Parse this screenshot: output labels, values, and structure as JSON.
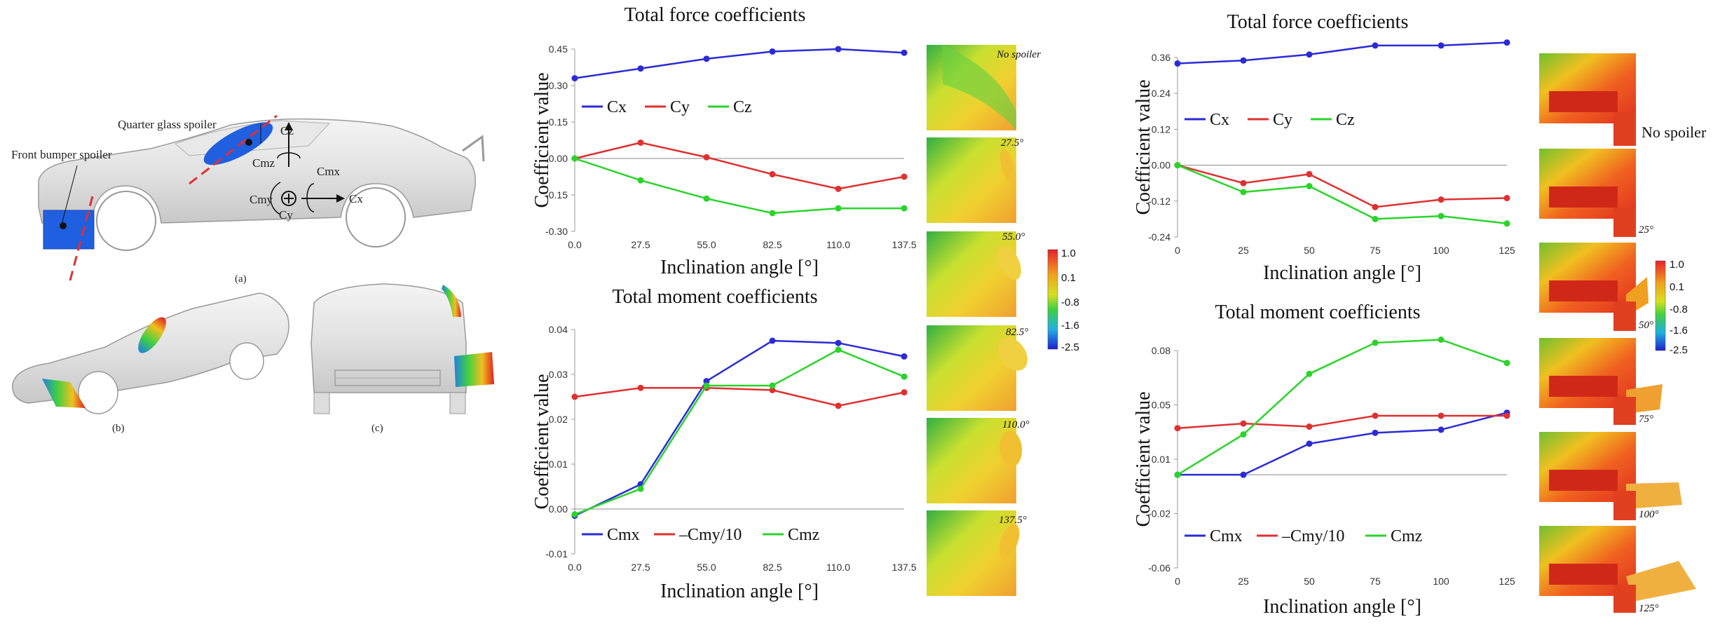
{
  "colors": {
    "cx": "#2b2bd6",
    "cy": "#e03030",
    "cz": "#2ad42a",
    "spoiler_blue": "#1f5fe0"
  },
  "car": {
    "front_bumper_label": "Front bumper spoiler",
    "quarter_glass_label": "Quarter glass spoiler",
    "axis_cz": "Cz",
    "axis_cmz": "Cmz",
    "axis_cmx": "Cmx",
    "axis_cmy": "Cmy",
    "axis_cy": "Cy",
    "axis_cx": "Cx",
    "panel_a": "(a)",
    "panel_b": "(b)",
    "panel_c": "(c)"
  },
  "colorbar": {
    "ticks": [
      "1.0",
      "0.1",
      "-0.8",
      "-1.6",
      "-2.5"
    ]
  },
  "thumbs_left": [
    "No spoiler",
    "27.5°",
    "55.0°",
    "82.5°",
    "110.0°",
    "137.5°"
  ],
  "thumbs_right": [
    "No spoiler",
    "25°",
    "50°",
    "75°",
    "100°",
    "125°"
  ],
  "chart_data": [
    {
      "id": "force-left",
      "type": "line",
      "title": "Total force coefficients",
      "xlabel": "Inclination angle [°]",
      "ylabel": "Coefficient value",
      "categories": [
        "0.0",
        "27.5",
        "55.0",
        "82.5",
        "110.0",
        "137.5"
      ],
      "ylim": [
        -0.3,
        0.45
      ],
      "yticks": [
        "0.45",
        "0.30",
        "0.15",
        "0.00",
        "-0.15",
        "-0.30"
      ],
      "ytick_values": [
        0.45,
        0.3,
        0.15,
        0.0,
        -0.15,
        -0.3
      ],
      "legend": [
        "Cx",
        "Cy",
        "Cz"
      ],
      "series": [
        {
          "name": "Cx",
          "values": [
            0.33,
            0.37,
            0.41,
            0.44,
            0.45,
            0.435
          ]
        },
        {
          "name": "Cy",
          "values": [
            0.0,
            0.065,
            0.005,
            -0.065,
            -0.125,
            -0.075
          ]
        },
        {
          "name": "Cz",
          "values": [
            0.0,
            -0.09,
            -0.165,
            -0.225,
            -0.205,
            -0.205
          ]
        }
      ]
    },
    {
      "id": "moment-left",
      "type": "line",
      "title": "Total moment coefficients",
      "xlabel": "Inclination angle [°]",
      "ylabel": "Coefficient value",
      "categories": [
        "0.0",
        "27.5",
        "55.0",
        "82.5",
        "110.0",
        "137.5"
      ],
      "ylim": [
        -0.01,
        0.04
      ],
      "yticks": [
        "0.04",
        "0.03",
        "0.02",
        "0.01",
        "0.00",
        "-0.01"
      ],
      "ytick_values": [
        0.04,
        0.03,
        0.02,
        0.01,
        0.0,
        -0.01
      ],
      "legend": [
        "Cmx",
        "–Cmy/10",
        "Cmz"
      ],
      "series": [
        {
          "name": "Cmx",
          "values": [
            -0.0015,
            0.0055,
            0.0285,
            0.0375,
            0.037,
            0.034
          ]
        },
        {
          "name": "–Cmy/10",
          "values": [
            0.025,
            0.027,
            0.027,
            0.0265,
            0.023,
            0.026
          ]
        },
        {
          "name": "Cmz",
          "values": [
            -0.0012,
            0.0045,
            0.0275,
            0.0275,
            0.0355,
            0.0295
          ]
        }
      ]
    },
    {
      "id": "force-right",
      "type": "line",
      "title": "Total force coefficients",
      "xlabel": "Inclination angle [°]",
      "ylabel": "Coefficient value",
      "categories": [
        "0",
        "25",
        "50",
        "75",
        "100",
        "125"
      ],
      "ylim": [
        -0.24,
        0.36
      ],
      "yticks": [
        "0.36",
        "0.24",
        "0.12",
        "0.00",
        "-0.12",
        "-0.24"
      ],
      "ytick_values": [
        0.36,
        0.24,
        0.12,
        0.0,
        -0.12,
        -0.24
      ],
      "legend": [
        "Cx",
        "Cy",
        "Cz"
      ],
      "series": [
        {
          "name": "Cx",
          "values": [
            0.34,
            0.35,
            0.37,
            0.4,
            0.4,
            0.41
          ]
        },
        {
          "name": "Cy",
          "values": [
            0.0,
            -0.06,
            -0.03,
            -0.14,
            -0.115,
            -0.11
          ]
        },
        {
          "name": "Cz",
          "values": [
            0.0,
            -0.09,
            -0.07,
            -0.18,
            -0.17,
            -0.195
          ]
        }
      ]
    },
    {
      "id": "moment-right",
      "type": "line",
      "title": "Total moment coefficients",
      "xlabel": "Inclination angle [°]",
      "ylabel": "Coefficient value",
      "categories": [
        "0",
        "25",
        "50",
        "75",
        "100",
        "125"
      ],
      "ylim": [
        -0.06,
        0.08
      ],
      "yticks": [
        "0.08",
        "0.05",
        "0.01",
        "-0.02",
        "-0.06"
      ],
      "ytick_values": [
        0.08,
        0.045,
        0.01,
        -0.025,
        -0.06
      ],
      "legend": [
        "Cmx",
        "–Cmy/10",
        "Cmz"
      ],
      "series": [
        {
          "name": "Cmx",
          "values": [
            0.0,
            0.0,
            0.02,
            0.027,
            0.029,
            0.04
          ]
        },
        {
          "name": "–Cmy/10",
          "values": [
            0.03,
            0.033,
            0.031,
            0.038,
            0.038,
            0.038
          ]
        },
        {
          "name": "Cmz",
          "values": [
            0.0,
            0.026,
            0.065,
            0.085,
            0.087,
            0.072
          ]
        }
      ]
    }
  ]
}
